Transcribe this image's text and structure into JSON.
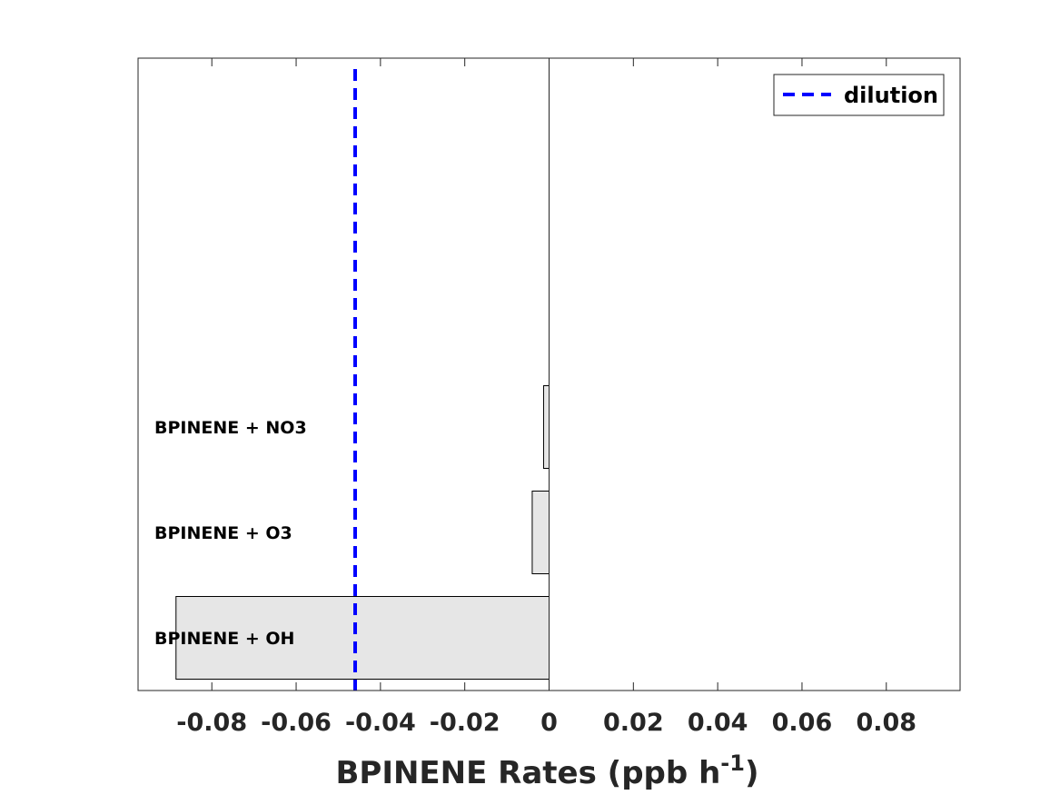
{
  "chart_data": {
    "type": "bar",
    "orientation": "horizontal",
    "categories": [
      "BPINENE + OH",
      "BPINENE + O3",
      "BPINENE + NO3"
    ],
    "values": [
      -0.0885,
      -0.004,
      -0.0013
    ],
    "bar_color": "#e6e6e6",
    "bar_edge_color": "#000000",
    "xlabel_main": "BPINENE Rates (ppb h",
    "xlabel_sup": "-1",
    "xlabel_close": ")",
    "xlim": [
      -0.0975,
      0.0975
    ],
    "xticks": [
      -0.08,
      -0.06,
      -0.04,
      -0.02,
      0,
      0.02,
      0.04,
      0.06,
      0.08
    ],
    "xtick_labels": [
      "-0.08",
      "-0.06",
      "-0.04",
      "-0.02",
      "0",
      "0.02",
      "0.04",
      "0.06",
      "0.08"
    ],
    "reference_line": {
      "name": "dilution",
      "x": -0.046,
      "color": "#0000ff",
      "style": "dashed"
    },
    "legend": {
      "placement": "top-right",
      "entries": [
        "dilution"
      ]
    },
    "grid": false
  }
}
